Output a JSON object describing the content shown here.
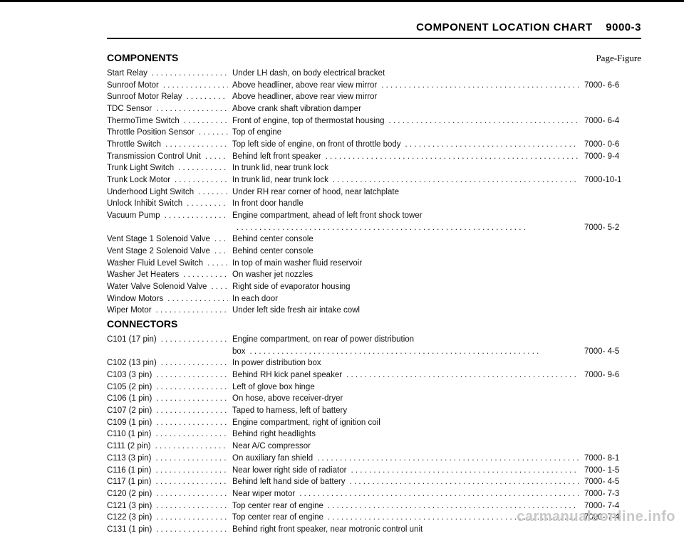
{
  "header": {
    "title_left": "COMPONENT LOCATION CHART",
    "title_right": "9000-3"
  },
  "sections": [
    {
      "heading": "COMPONENTS",
      "page_fig_label": "Page-Figure",
      "rows": [
        {
          "name": "Start Relay",
          "location": "Under LH dash, on body electrical bracket",
          "ref": ""
        },
        {
          "name": "Sunroof Motor",
          "location": "Above headliner, above rear view mirror",
          "ref": "7000- 6-6"
        },
        {
          "name": "Sunroof Motor Relay",
          "location": "Above headliner, above rear view mirror",
          "ref": ""
        },
        {
          "name": "TDC Sensor",
          "location": "Above crank shaft vibration damper",
          "ref": ""
        },
        {
          "name": "ThermoTime Switch",
          "location": "Front of engine, top of thermostat housing",
          "ref": "7000- 6-4"
        },
        {
          "name": "Throttle Position Sensor",
          "location": "Top of engine",
          "ref": ""
        },
        {
          "name": "Throttle Switch",
          "location": "Top left side of engine, on front of throttle body",
          "ref": "7000- 0-6"
        },
        {
          "name": "Transmission Control Unit",
          "location": "Behind left front speaker",
          "ref": "7000- 9-4"
        },
        {
          "name": "Trunk Light Switch",
          "location": "In trunk lid, near trunk lock",
          "ref": ""
        },
        {
          "name": "Trunk Lock Motor",
          "location": "In trunk lid, near trunk lock",
          "ref": "7000-10-1"
        },
        {
          "name": "Underhood Light Switch",
          "location": "Under RH rear corner of hood, near latchplate",
          "ref": ""
        },
        {
          "name": "Unlock Inhibit Switch",
          "location": "In front door handle",
          "ref": ""
        },
        {
          "name": "Vacuum Pump",
          "location": "Engine compartment, ahead of left front shock tower",
          "ref": ""
        },
        {
          "name": "",
          "location": "",
          "ref": "7000- 5-2",
          "indent": true
        },
        {
          "name": "Vent Stage 1 Solenoid Valve",
          "location": "Behind center console",
          "ref": ""
        },
        {
          "name": "Vent Stage 2 Solenoid Valve",
          "location": "Behind center console",
          "ref": ""
        },
        {
          "name": "Washer Fluid Level Switch",
          "location": "In top of main washer fluid reservoir",
          "ref": ""
        },
        {
          "name": "Washer Jet Heaters",
          "location": "On washer jet nozzles",
          "ref": ""
        },
        {
          "name": "Water Valve Solenoid Valve",
          "location": "Right side of evaporator housing",
          "ref": ""
        },
        {
          "name": "Window Motors",
          "location": "In each door",
          "ref": ""
        },
        {
          "name": "Wiper Motor",
          "location": "Under left side fresh air intake cowl",
          "ref": ""
        }
      ]
    },
    {
      "heading": "CONNECTORS",
      "page_fig_label": "",
      "rows": [
        {
          "name": "C101 (17 pin)",
          "location": "Engine compartment, on rear of power distribution",
          "ref": ""
        },
        {
          "name": "",
          "location": "box",
          "ref": "7000- 4-5",
          "indent": true
        },
        {
          "name": "C102 (13 pin)",
          "location": "In power distribution box",
          "ref": ""
        },
        {
          "name": "C103 (3 pin)",
          "location": "Behind RH kick panel speaker",
          "ref": "7000- 9-6"
        },
        {
          "name": "C105 (2 pin)",
          "location": "Left of glove box hinge",
          "ref": ""
        },
        {
          "name": "C106 (1 pin)",
          "location": "On hose, above receiver-dryer",
          "ref": ""
        },
        {
          "name": "C107 (2 pin)",
          "location": "Taped to harness, left of battery",
          "ref": ""
        },
        {
          "name": "C109 (1 pin)",
          "location": "Engine compartment, right of ignition coil",
          "ref": ""
        },
        {
          "name": "C110 (1 pin)",
          "location": "Behind right headlights",
          "ref": ""
        },
        {
          "name": "C111 (2 pin)",
          "location": "Near A/C compressor",
          "ref": ""
        },
        {
          "name": "C113 (3 pin)",
          "location": "On auxiliary fan shield",
          "ref": "7000- 8-1"
        },
        {
          "name": "C116 (1 pin)",
          "location": "Near lower right side of radiator",
          "ref": "7000- 1-5"
        },
        {
          "name": "C117 (1 pin)",
          "location": "Behind left hand side of battery",
          "ref": "7000- 4-5"
        },
        {
          "name": "C120 (2 pin)",
          "location": "Near wiper motor",
          "ref": "7000- 7-3"
        },
        {
          "name": "C121 (3 pin)",
          "location": "Top center rear of engine",
          "ref": "7000- 7-4"
        },
        {
          "name": "C122 (3 pin)",
          "location": "Top center rear of engine",
          "ref": "7000- 7-4"
        },
        {
          "name": "C131 (1 pin)",
          "location": "Behind right front speaker, near motronic control unit",
          "ref": ""
        }
      ]
    }
  ],
  "watermark": "carmanualsonline.info"
}
